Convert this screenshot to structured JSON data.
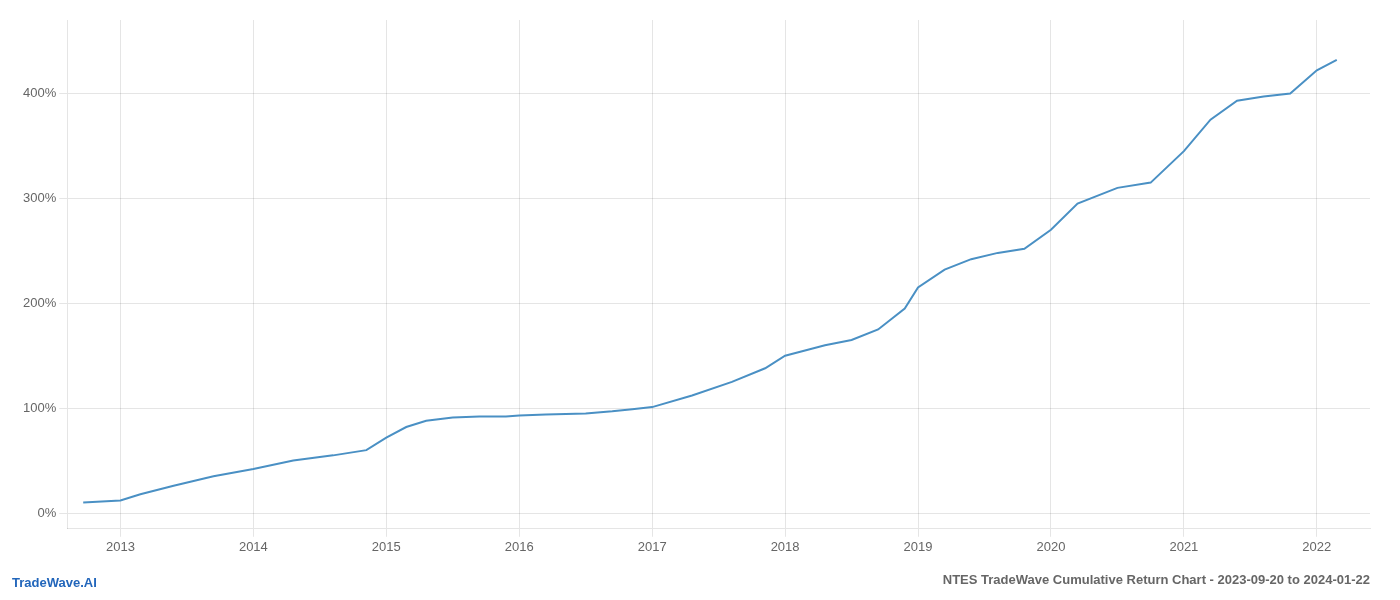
{
  "chart_data": {
    "type": "line",
    "title": "NTES TradeWave Cumulative Return Chart - 2023-09-20 to 2024-01-22",
    "annotations": [
      "TradeWave.AI"
    ],
    "x": [
      2012.72,
      2013.0,
      2013.15,
      2013.4,
      2013.7,
      2014.0,
      2014.3,
      2014.6,
      2014.85,
      2015.0,
      2015.15,
      2015.3,
      2015.5,
      2015.7,
      2015.9,
      2016.0,
      2016.2,
      2016.5,
      2016.7,
      2016.85,
      2017.0,
      2017.3,
      2017.6,
      2017.85,
      2018.0,
      2018.15,
      2018.3,
      2018.5,
      2018.7,
      2018.9,
      2019.0,
      2019.2,
      2019.4,
      2019.6,
      2019.8,
      2020.0,
      2020.2,
      2020.5,
      2020.75,
      2021.0,
      2021.2,
      2021.4,
      2021.6,
      2021.8,
      2022.0,
      2022.15
    ],
    "values": [
      10,
      12,
      18,
      26,
      35,
      42,
      50,
      55,
      60,
      72,
      82,
      88,
      91,
      92,
      92,
      93,
      94,
      95,
      97,
      99,
      101,
      112,
      125,
      138,
      150,
      155,
      160,
      165,
      175,
      195,
      215,
      232,
      242,
      248,
      252,
      270,
      295,
      310,
      315,
      345,
      375,
      393,
      397,
      400,
      422,
      432
    ],
    "color": "#4a90c4",
    "xlim": [
      2012.6,
      2022.4
    ],
    "xticks": [
      2013,
      2014,
      2015,
      2016,
      2017,
      2018,
      2019,
      2020,
      2021,
      2022
    ],
    "ylim": [
      -15,
      470
    ],
    "yticks": [
      {
        "value": 0,
        "label": "0%"
      },
      {
        "value": 100,
        "label": "100%"
      },
      {
        "value": 200,
        "label": "200%"
      },
      {
        "value": 300,
        "label": "300%"
      },
      {
        "value": 400,
        "label": "400%"
      }
    ],
    "grid": true
  }
}
